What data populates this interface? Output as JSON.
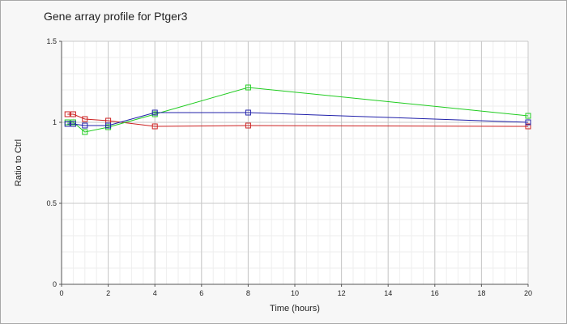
{
  "chart_data": {
    "type": "line",
    "title": "Gene array profile for Ptger3",
    "xlabel": "Time (hours)",
    "ylabel": "Ratio to Ctrl",
    "xlim": [
      0,
      20
    ],
    "ylim": [
      0,
      1.5
    ],
    "xticks": [
      0,
      2,
      4,
      6,
      8,
      10,
      12,
      14,
      16,
      18,
      20
    ],
    "xtick_labels": [
      "0",
      "2",
      "4",
      "6",
      "8",
      "10",
      "12",
      "14",
      "16",
      "18",
      "20"
    ],
    "yticks": [
      0,
      0.5,
      1,
      1.5
    ],
    "ytick_labels": [
      "0",
      "0.5",
      "1",
      "1.5"
    ],
    "grid": true,
    "legend": "none",
    "series": [
      {
        "color": "#cc2020",
        "x": [
          0.25,
          0.5,
          1,
          2,
          4,
          8,
          20
        ],
        "y": [
          1.05,
          1.05,
          1.02,
          1.01,
          0.975,
          0.98,
          0.975
        ]
      },
      {
        "color": "#20cc20",
        "x": [
          0.25,
          0.5,
          1,
          2,
          4,
          8,
          20
        ],
        "y": [
          1.0,
          1.0,
          0.94,
          0.97,
          1.05,
          1.215,
          1.04
        ]
      },
      {
        "color": "#2020aa",
        "x": [
          0.25,
          0.5,
          1,
          2,
          4,
          8,
          20
        ],
        "y": [
          0.99,
          0.99,
          0.98,
          0.98,
          1.06,
          1.06,
          1.0
        ]
      }
    ]
  }
}
